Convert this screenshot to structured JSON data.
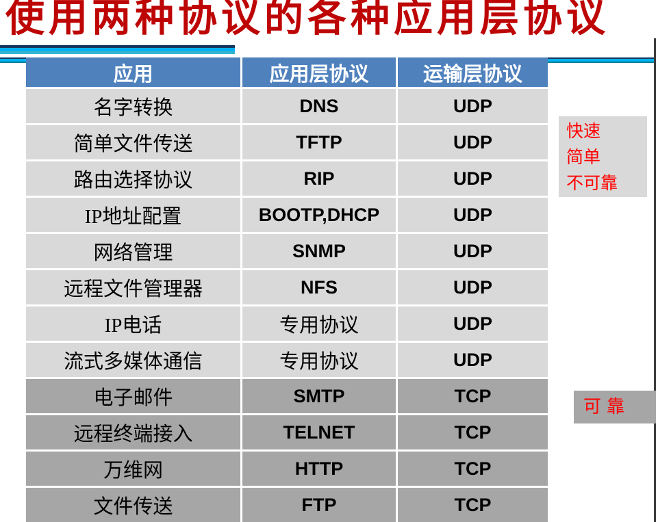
{
  "title": {
    "text": "使用两种协议的各种应用层协议"
  },
  "table": {
    "headers": {
      "application": "应用",
      "app_layer_protocol": "应用层协议",
      "transport_layer_protocol": "运输层协议"
    },
    "rows": [
      {
        "app": "名字转换",
        "protocol": "DNS",
        "transport": "UDP"
      },
      {
        "app": "简单文件传送",
        "protocol": "TFTP",
        "transport": "UDP"
      },
      {
        "app": "路由选择协议",
        "protocol": "RIP",
        "transport": "UDP"
      },
      {
        "app": "IP地址配置",
        "protocol": "BOOTP,DHCP",
        "transport": "UDP"
      },
      {
        "app": "网络管理",
        "protocol": "SNMP",
        "transport": "UDP"
      },
      {
        "app": "远程文件管理器",
        "protocol": "NFS",
        "transport": "UDP"
      },
      {
        "app": "IP电话",
        "protocol": "专用协议",
        "transport": "UDP"
      },
      {
        "app": "流式多媒体通信",
        "protocol": "专用协议",
        "transport": "UDP"
      },
      {
        "app": "电子邮件",
        "protocol": "SMTP",
        "transport": "TCP"
      },
      {
        "app": "远程终端接入",
        "protocol": "TELNET",
        "transport": "TCP"
      },
      {
        "app": "万维网",
        "protocol": "HTTP",
        "transport": "TCP"
      },
      {
        "app": "文件传送",
        "protocol": "FTP",
        "transport": "TCP"
      }
    ]
  },
  "annotations": {
    "udp_note": {
      "lines": [
        "快速",
        "简单",
        "不可靠"
      ]
    },
    "tcp_note": {
      "text": "可靠"
    }
  },
  "colors": {
    "title_red": "#BE0505",
    "header_blue": "#4F81BD",
    "udp_row_gray": "#D9D9D9",
    "tcp_row_gray": "#A6A6A6",
    "note_red": "#FF0000",
    "accent_cyan": "#00B0F0",
    "accent_navy": "#17365D"
  }
}
